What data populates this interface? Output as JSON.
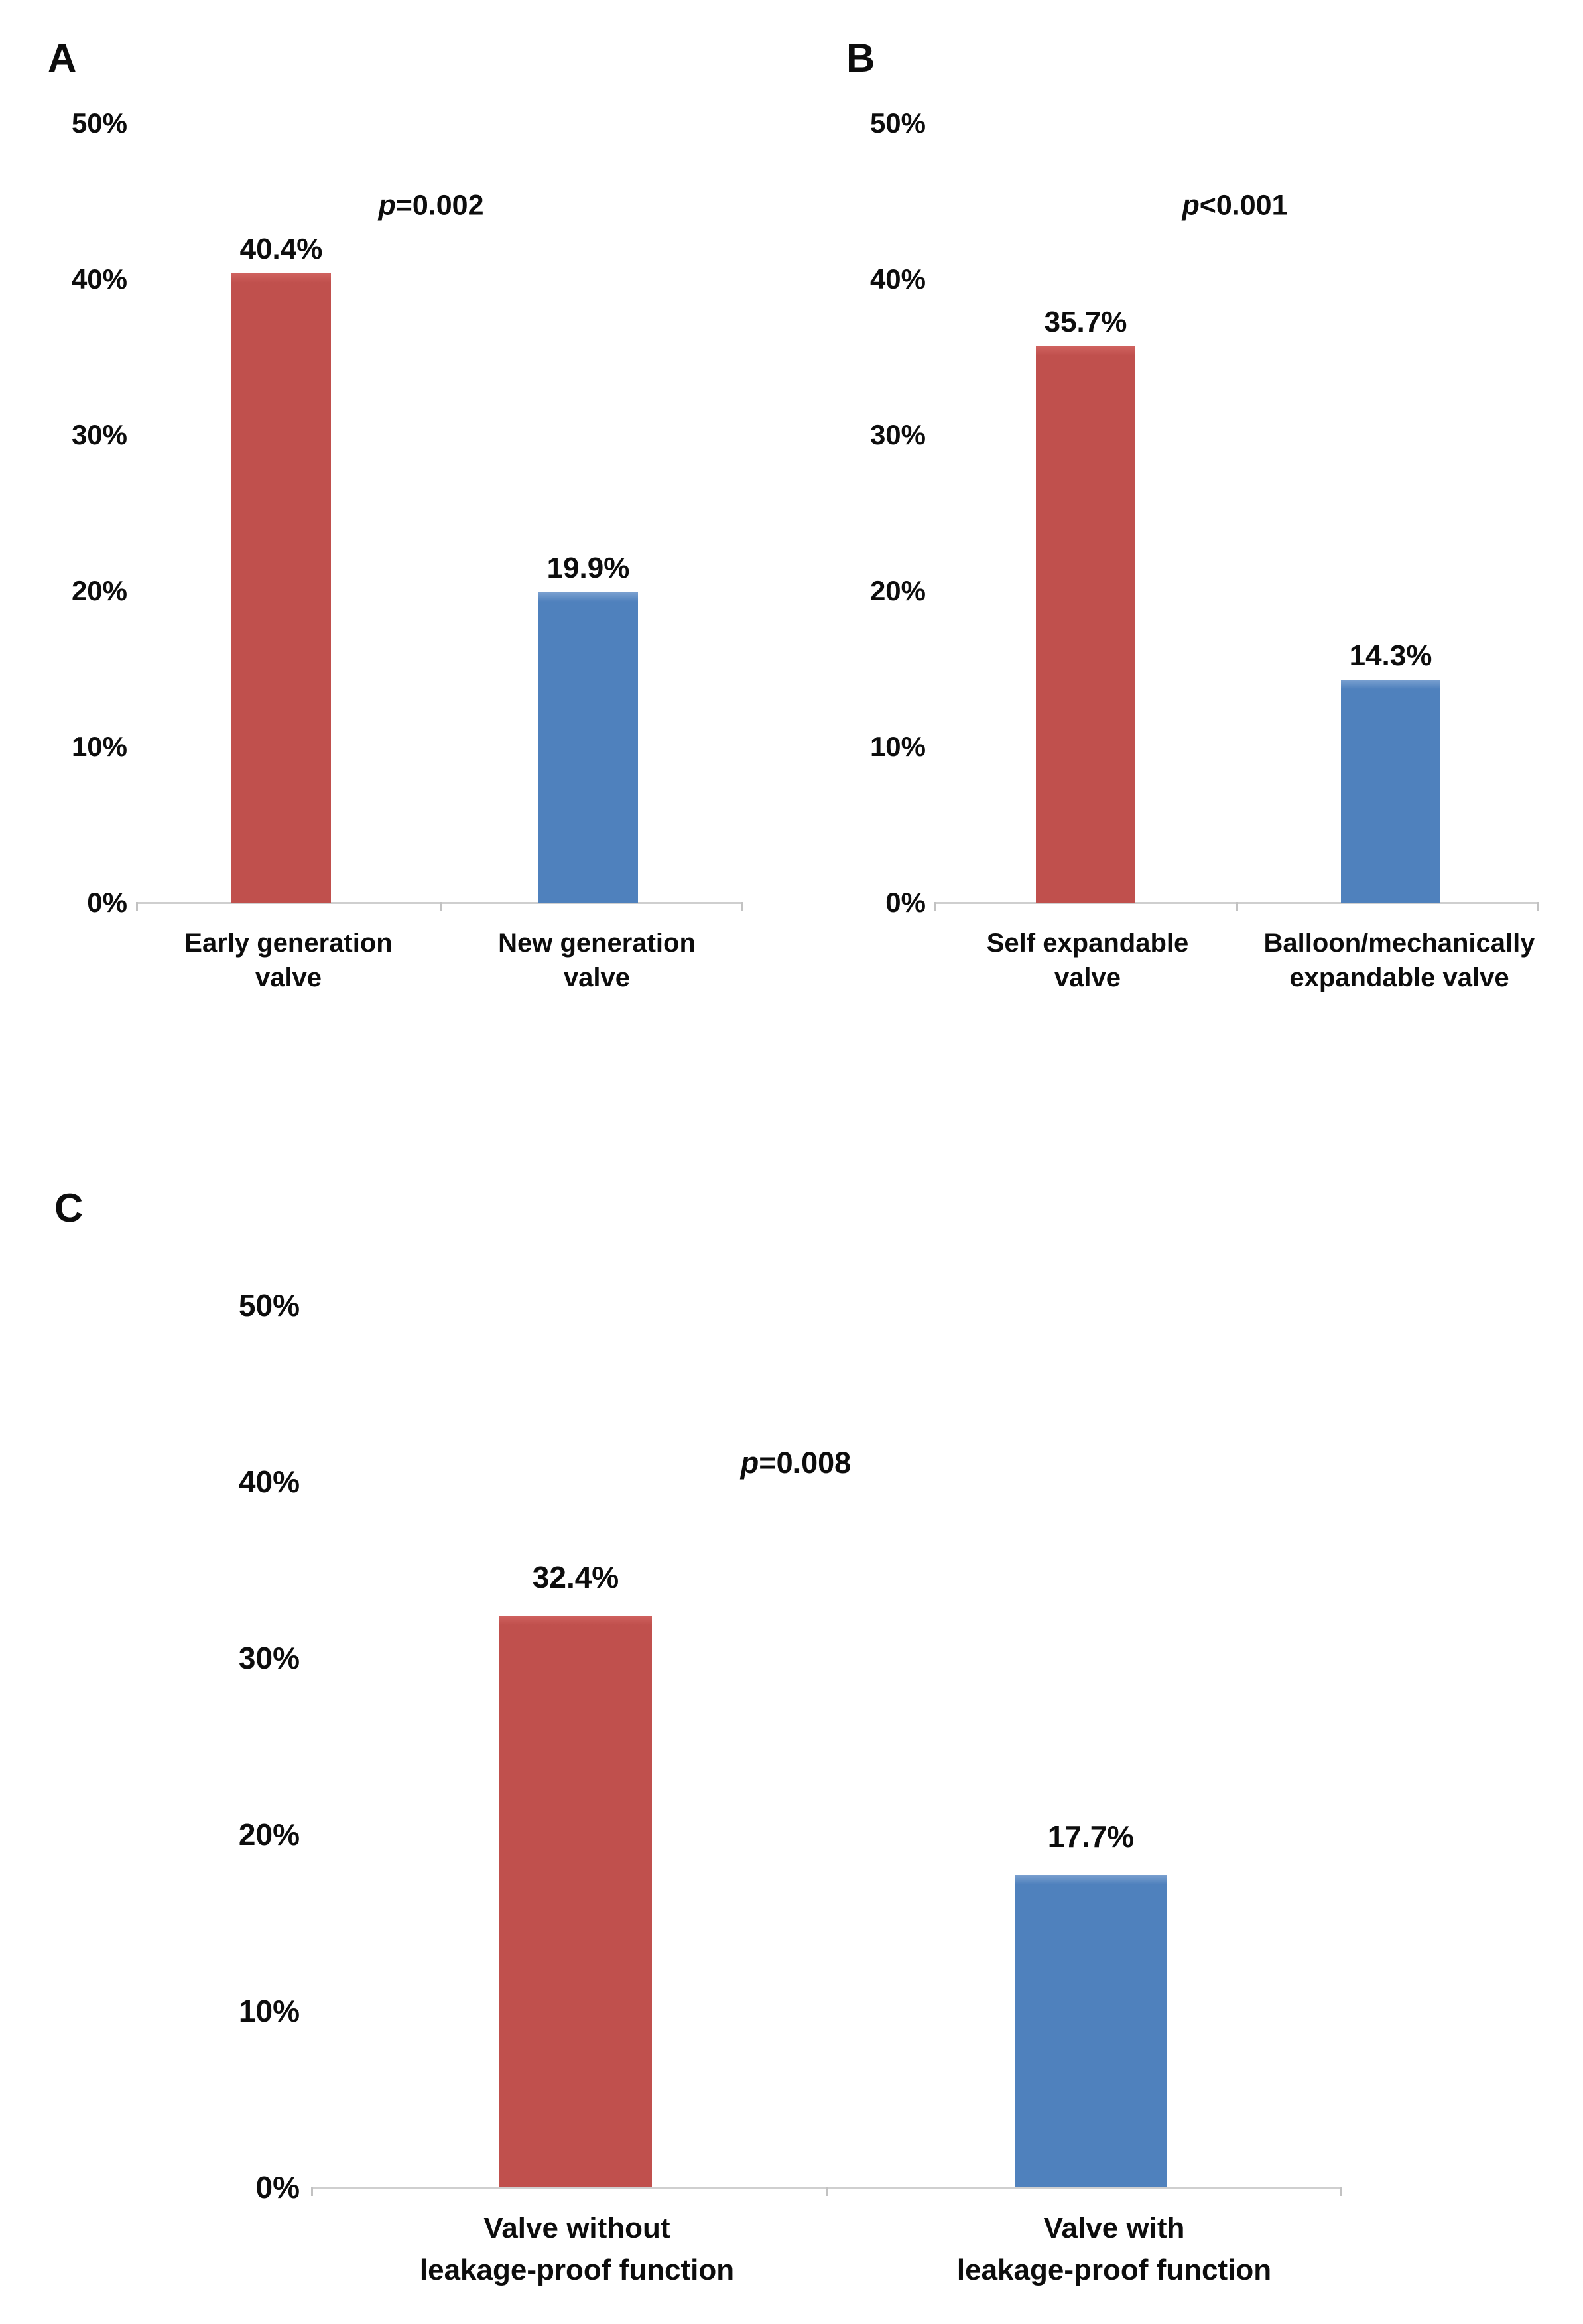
{
  "figure_background": "#ffffff",
  "colors": {
    "red_bar": "#C0504D",
    "red_bar_highlight": "#d0625f",
    "blue_bar": "#4F81BD",
    "blue_bar_highlight": "#7aa0d0",
    "axis_line": "#cfcfcf",
    "text": "#0d0d0d"
  },
  "chart_data": [
    {
      "type": "bar",
      "panel_label": "A",
      "p_italic": "p",
      "p_rest": "=0.002",
      "categories": [
        [
          "Early generation",
          "valve"
        ],
        [
          "New generation",
          "valve"
        ]
      ],
      "values": [
        40.4,
        19.9
      ],
      "value_labels": [
        "40.4%",
        "19.9%"
      ],
      "bar_colors": [
        "#C0504D",
        "#4F81BD"
      ],
      "bar_color_names": [
        "red",
        "blue"
      ],
      "ylim": [
        0,
        50
      ],
      "ytick_labels": [
        "50%",
        "40%",
        "30%",
        "20%",
        "10%",
        "0%"
      ],
      "grid": "off",
      "legend": "none"
    },
    {
      "type": "bar",
      "panel_label": "B",
      "p_italic": "p",
      "p_rest": "<0.001",
      "categories": [
        [
          "Self expandable",
          "valve"
        ],
        [
          "Balloon/mechanically",
          "expandable valve"
        ]
      ],
      "values": [
        35.7,
        14.3
      ],
      "value_labels": [
        "35.7%",
        "14.3%"
      ],
      "bar_colors": [
        "#C0504D",
        "#4F81BD"
      ],
      "bar_color_names": [
        "red",
        "blue"
      ],
      "ylim": [
        0,
        50
      ],
      "ytick_labels": [
        "50%",
        "40%",
        "30%",
        "20%",
        "10%",
        "0%"
      ],
      "grid": "off",
      "legend": "none"
    },
    {
      "type": "bar",
      "panel_label": "C",
      "p_italic": "p",
      "p_rest": "=0.008",
      "categories": [
        [
          "Valve without",
          "leakage-proof function"
        ],
        [
          "Valve with",
          "leakage-proof function"
        ]
      ],
      "values": [
        32.4,
        17.7
      ],
      "value_labels": [
        "32.4%",
        "17.7%"
      ],
      "bar_colors": [
        "#C0504D",
        "#4F81BD"
      ],
      "bar_color_names": [
        "red",
        "blue"
      ],
      "ylim": [
        0,
        50
      ],
      "ytick_labels": [
        "50%",
        "40%",
        "30%",
        "20%",
        "10%",
        "0%"
      ],
      "grid": "off",
      "legend": "none"
    }
  ]
}
